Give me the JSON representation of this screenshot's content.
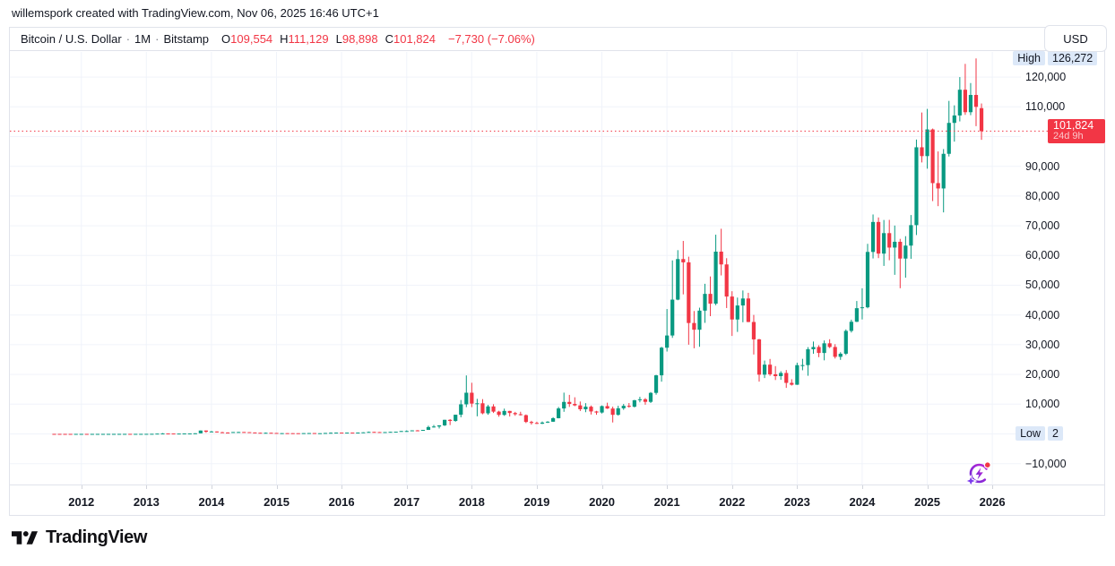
{
  "attribution": {
    "text": "willemspork created with TradingView.com, Nov 06, 2025 16:46 UTC+1"
  },
  "header": {
    "symbol": "Bitcoin / U.S. Dollar",
    "separator": "·",
    "interval": "1M",
    "exchange": "Bitstamp",
    "ohlc": [
      {
        "label": "O",
        "value": "109,554"
      },
      {
        "label": "H",
        "value": "111,129"
      },
      {
        "label": "L",
        "value": "98,898"
      },
      {
        "label": "C",
        "value": "101,824"
      }
    ],
    "change": "−7,730 (−7.06%)"
  },
  "currency_button": {
    "label": "USD"
  },
  "price_axis": {
    "ticks": [
      {
        "v": 120000,
        "t": "120,000"
      },
      {
        "v": 110000,
        "t": "110,000"
      },
      {
        "v": 90000,
        "t": "90,000"
      },
      {
        "v": 80000,
        "t": "80,000"
      },
      {
        "v": 70000,
        "t": "70,000"
      },
      {
        "v": 60000,
        "t": "60,000"
      },
      {
        "v": 50000,
        "t": "50,000"
      },
      {
        "v": 40000,
        "t": "40,000"
      },
      {
        "v": 30000,
        "t": "30,000"
      },
      {
        "v": 20000,
        "t": "20,000"
      },
      {
        "v": 10000,
        "t": "10,000"
      },
      {
        "v": -10000,
        "t": "−10,000"
      }
    ],
    "grid_values": [
      -10000,
      0,
      10000,
      20000,
      30000,
      40000,
      50000,
      60000,
      70000,
      80000,
      90000,
      100000,
      110000,
      120000
    ],
    "high": {
      "label": "High",
      "display": "126,272",
      "value": 126272
    },
    "low": {
      "label": "Low",
      "display": "2",
      "value": 2
    },
    "last": {
      "display": "101,824",
      "countdown": "24d 9h",
      "value": 101824
    }
  },
  "x_axis": {
    "years": [
      2012,
      2013,
      2014,
      2015,
      2016,
      2017,
      2018,
      2019,
      2020,
      2021,
      2022,
      2023,
      2024,
      2025,
      2026
    ]
  },
  "colors": {
    "up": "#089981",
    "down": "#f23645",
    "grid": "#f0f3fa",
    "border": "#e0e3eb",
    "axis_text": "#131722",
    "badge_blue": "#dce8f8",
    "last_badge_bg": "#f23645"
  },
  "footer": {
    "logo_text": "TradingView"
  },
  "chart_data": {
    "type": "candlestick",
    "title": "Bitcoin / U.S. Dollar",
    "interval": "1M",
    "exchange": "Bitstamp",
    "start_month": "2011-08",
    "end_month": "2025-11",
    "ylabel": "USD",
    "ylim": [
      -17000,
      128500
    ],
    "grid": true,
    "up_color": "#089981",
    "down_color": "#f23645",
    "high_marker": 126272,
    "low_marker": 2,
    "last_close": 101824,
    "candles": [
      [
        11.2,
        11.2,
        7.6,
        8.2
      ],
      [
        8.2,
        8.9,
        4.8,
        5.0
      ],
      [
        5.0,
        5.2,
        2.0,
        3.2
      ],
      [
        3.2,
        3.5,
        2.0,
        3.0
      ],
      [
        3.0,
        4.8,
        2.8,
        4.7
      ],
      [
        4.7,
        7.2,
        4.5,
        5.5
      ],
      [
        5.5,
        6.2,
        4.3,
        4.9
      ],
      [
        4.9,
        5.5,
        4.5,
        4.9
      ],
      [
        4.9,
        5.4,
        4.7,
        5.0
      ],
      [
        5.0,
        5.3,
        4.9,
        5.2
      ],
      [
        5.2,
        6.9,
        5.1,
        6.7
      ],
      [
        6.7,
        9.5,
        6.5,
        9.4
      ],
      [
        9.4,
        16.4,
        7.5,
        10.2
      ],
      [
        10.2,
        12.7,
        9.8,
        12.4
      ],
      [
        12.4,
        12.8,
        10.6,
        11.2
      ],
      [
        11.2,
        12.8,
        10.5,
        12.6
      ],
      [
        12.6,
        13.9,
        12.3,
        13.5
      ],
      [
        13.5,
        20.6,
        13.2,
        20.4
      ],
      [
        20.4,
        34,
        19.8,
        33.4
      ],
      [
        33.4,
        94.5,
        33,
        93
      ],
      [
        93,
        266,
        50,
        139
      ],
      [
        139,
        140,
        79,
        129
      ],
      [
        129,
        130,
        88,
        97
      ],
      [
        97,
        111,
        65,
        106
      ],
      [
        106,
        147,
        92,
        141
      ],
      [
        141,
        147,
        109,
        141
      ],
      [
        141,
        230,
        109,
        204
      ],
      [
        204,
        1163,
        200,
        1130
      ],
      [
        1130,
        1160,
        380,
        732
      ],
      [
        732,
        1000,
        720,
        815
      ],
      [
        815,
        830,
        400,
        550
      ],
      [
        550,
        700,
        420,
        458
      ],
      [
        458,
        550,
        340,
        446
      ],
      [
        446,
        630,
        420,
        627
      ],
      [
        627,
        680,
        540,
        640
      ],
      [
        640,
        660,
        560,
        583
      ],
      [
        583,
        600,
        440,
        478
      ],
      [
        478,
        490,
        365,
        387
      ],
      [
        387,
        400,
        275,
        338
      ],
      [
        338,
        460,
        320,
        378
      ],
      [
        378,
        385,
        285,
        318
      ],
      [
        318,
        320,
        152,
        217
      ],
      [
        217,
        265,
        210,
        254
      ],
      [
        254,
        300,
        236,
        244
      ],
      [
        244,
        262,
        210,
        236
      ],
      [
        236,
        250,
        226,
        230
      ],
      [
        230,
        268,
        220,
        263
      ],
      [
        263,
        318,
        250,
        284
      ],
      [
        284,
        288,
        198,
        230
      ],
      [
        230,
        248,
        223,
        236
      ],
      [
        236,
        335,
        235,
        314
      ],
      [
        314,
        504,
        295,
        377
      ],
      [
        377,
        467,
        350,
        430
      ],
      [
        430,
        435,
        350,
        368
      ],
      [
        368,
        448,
        365,
        437
      ],
      [
        437,
        440,
        380,
        416
      ],
      [
        416,
        470,
        410,
        448
      ],
      [
        448,
        550,
        440,
        531
      ],
      [
        531,
        780,
        510,
        673
      ],
      [
        673,
        710,
        600,
        624
      ],
      [
        624,
        630,
        465,
        575
      ],
      [
        575,
        630,
        565,
        610
      ],
      [
        610,
        720,
        600,
        700
      ],
      [
        700,
        755,
        670,
        745
      ],
      [
        745,
        980,
        740,
        963
      ],
      [
        963,
        1180,
        750,
        970
      ],
      [
        970,
        1220,
        920,
        1190
      ],
      [
        1190,
        1290,
        890,
        1080
      ],
      [
        1080,
        1350,
        1060,
        1350
      ],
      [
        1350,
        2760,
        1320,
        2300
      ],
      [
        2300,
        3000,
        2100,
        2480
      ],
      [
        2480,
        2920,
        1830,
        2875
      ],
      [
        2875,
        4765,
        2650,
        4735
      ],
      [
        4735,
        4980,
        2970,
        4360
      ],
      [
        4360,
        6470,
        4110,
        6450
      ],
      [
        6450,
        11400,
        5590,
        9950
      ],
      [
        9950,
        19666,
        9000,
        13850
      ],
      [
        13850,
        17200,
        9000,
        10200
      ],
      [
        10200,
        11790,
        5920,
        10300
      ],
      [
        10300,
        11700,
        6600,
        6930
      ],
      [
        6930,
        9760,
        6430,
        9240
      ],
      [
        9240,
        9990,
        7040,
        7490
      ],
      [
        7490,
        7780,
        5770,
        6390
      ],
      [
        6390,
        8500,
        6070,
        7730
      ],
      [
        7730,
        7760,
        5850,
        7030
      ],
      [
        7030,
        7420,
        6100,
        6620
      ],
      [
        6620,
        7450,
        6190,
        6300
      ],
      [
        6300,
        6540,
        3650,
        4020
      ],
      [
        4020,
        4410,
        3120,
        3690
      ],
      [
        3690,
        4110,
        3350,
        3430
      ],
      [
        3430,
        4190,
        3330,
        3810
      ],
      [
        3810,
        4290,
        3670,
        4100
      ],
      [
        4100,
        5620,
        4030,
        5270
      ],
      [
        5270,
        9070,
        5220,
        8560
      ],
      [
        8560,
        13880,
        7430,
        10760
      ],
      [
        10760,
        13130,
        9070,
        10080
      ],
      [
        10080,
        12320,
        9320,
        9590
      ],
      [
        9590,
        10900,
        7700,
        8290
      ],
      [
        8290,
        10350,
        7300,
        9150
      ],
      [
        9150,
        9550,
        6520,
        7550
      ],
      [
        7550,
        7750,
        6430,
        7190
      ],
      [
        7190,
        9570,
        6850,
        9350
      ],
      [
        9350,
        10500,
        8400,
        8530
      ],
      [
        8530,
        9180,
        3850,
        6420
      ],
      [
        6420,
        9460,
        6150,
        8620
      ],
      [
        8620,
        10070,
        8100,
        9450
      ],
      [
        9450,
        10380,
        8830,
        9140
      ],
      [
        9140,
        11450,
        8900,
        11330
      ],
      [
        11330,
        12480,
        10630,
        11650
      ],
      [
        11650,
        12050,
        9820,
        10780
      ],
      [
        10780,
        14100,
        10380,
        13800
      ],
      [
        13800,
        19860,
        13200,
        19700
      ],
      [
        19700,
        29300,
        17570,
        28990
      ],
      [
        28990,
        42000,
        27700,
        33100
      ],
      [
        33100,
        58350,
        32300,
        45160
      ],
      [
        45160,
        61800,
        44950,
        58800
      ],
      [
        58800,
        64900,
        46930,
        57700
      ],
      [
        57700,
        59600,
        30000,
        37300
      ],
      [
        37300,
        41330,
        28800,
        35040
      ],
      [
        35040,
        42450,
        29300,
        41460
      ],
      [
        41460,
        50500,
        37330,
        47100
      ],
      [
        47100,
        52950,
        39600,
        43800
      ],
      [
        43800,
        67000,
        43280,
        61300
      ],
      [
        61300,
        69000,
        53300,
        57000
      ],
      [
        57000,
        59100,
        42330,
        46200
      ],
      [
        46200,
        47990,
        32950,
        38480
      ],
      [
        38480,
        45850,
        34300,
        43190
      ],
      [
        43190,
        48240,
        37550,
        45540
      ],
      [
        45540,
        47450,
        37580,
        37640
      ],
      [
        37640,
        40020,
        26700,
        31790
      ],
      [
        31790,
        31960,
        17600,
        19925
      ],
      [
        19925,
        24670,
        18780,
        23290
      ],
      [
        23290,
        25210,
        19520,
        20050
      ],
      [
        20050,
        22800,
        18125,
        19430
      ],
      [
        19430,
        21080,
        18190,
        20490
      ],
      [
        20490,
        21480,
        15480,
        17160
      ],
      [
        17160,
        18390,
        16260,
        16540
      ],
      [
        16540,
        23960,
        16490,
        23130
      ],
      [
        23130,
        25250,
        21400,
        23140
      ],
      [
        23140,
        29180,
        19550,
        28470
      ],
      [
        28470,
        31050,
        26940,
        29230
      ],
      [
        29230,
        29820,
        25810,
        27220
      ],
      [
        27220,
        31430,
        24750,
        30470
      ],
      [
        30470,
        31840,
        28860,
        29230
      ],
      [
        29230,
        30180,
        25350,
        25930
      ],
      [
        25930,
        27480,
        24900,
        26970
      ],
      [
        26970,
        35150,
        26530,
        34650
      ],
      [
        34650,
        38420,
        34100,
        37710
      ],
      [
        37710,
        44700,
        37610,
        42280
      ],
      [
        42280,
        48970,
        38500,
        42580
      ],
      [
        42580,
        63930,
        42240,
        61200
      ],
      [
        61200,
        73800,
        59010,
        71280
      ],
      [
        71280,
        72800,
        59120,
        60640
      ],
      [
        60640,
        71950,
        56500,
        67530
      ],
      [
        67530,
        71990,
        58400,
        62670
      ],
      [
        62670,
        70080,
        53500,
        64620
      ],
      [
        64620,
        65600,
        49000,
        58970
      ],
      [
        58970,
        66500,
        52550,
        63330
      ],
      [
        63330,
        73620,
        58900,
        70220
      ],
      [
        70220,
        99000,
        66880,
        96400
      ],
      [
        96400,
        108100,
        91300,
        93430
      ],
      [
        93430,
        109300,
        89200,
        102400
      ],
      [
        102400,
        102700,
        78300,
        84350
      ],
      [
        84350,
        95000,
        76600,
        82550
      ],
      [
        82550,
        95800,
        74500,
        94200
      ],
      [
        94200,
        112000,
        93300,
        104600
      ],
      [
        104600,
        110500,
        98300,
        107100
      ],
      [
        107100,
        120000,
        105100,
        115750
      ],
      [
        115750,
        124450,
        107300,
        108200
      ],
      [
        108200,
        118000,
        107200,
        114000
      ],
      [
        114000,
        126272,
        103500,
        110000
      ],
      [
        109554,
        111129,
        98898,
        101824
      ]
    ]
  }
}
